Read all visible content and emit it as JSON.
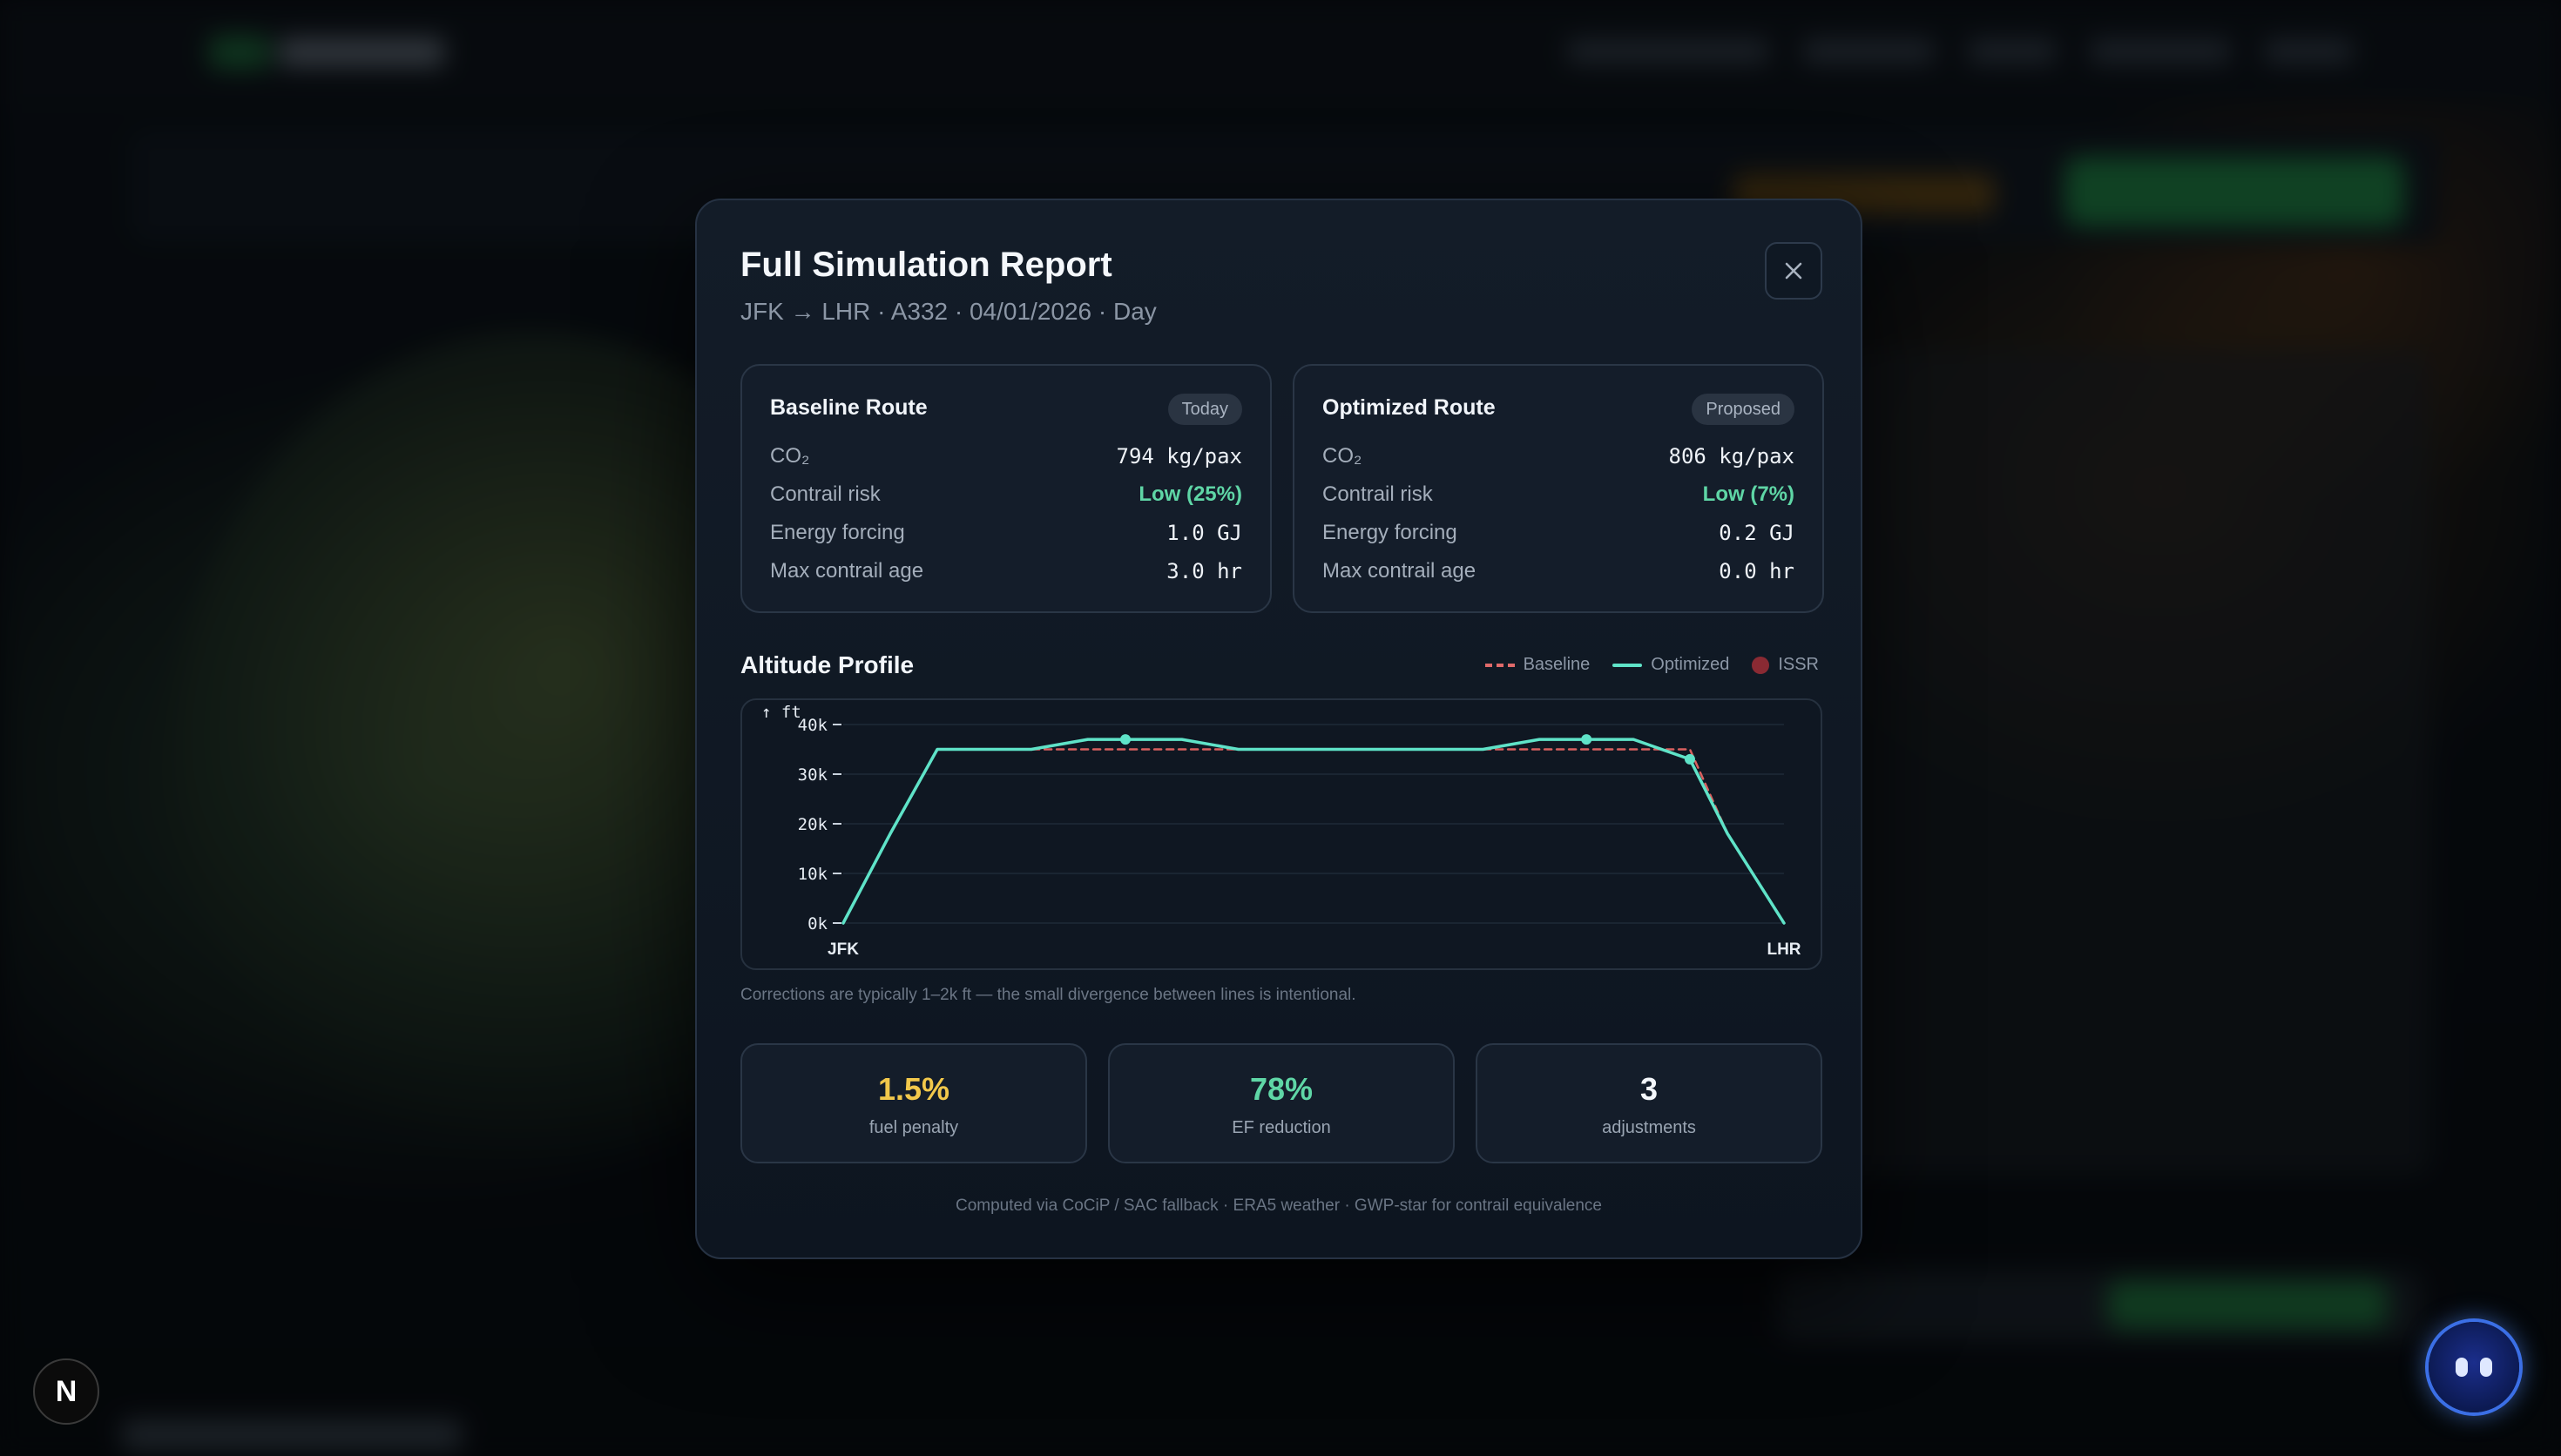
{
  "modal": {
    "title": "Full Simulation Report",
    "subtitle": "JFK → LHR · A332 · 04/01/2026 · Day",
    "close_icon": "close-icon"
  },
  "baseline": {
    "title": "Baseline Route",
    "badge": "Today",
    "rows": [
      {
        "label": "CO₂",
        "value": "794 kg/pax"
      },
      {
        "label": "Contrail risk",
        "value": "Low (25%)"
      },
      {
        "label": "Energy forcing",
        "value": "1.0 GJ"
      },
      {
        "label": "Max contrail age",
        "value": "3.0 hr"
      }
    ]
  },
  "optimized": {
    "title": "Optimized Route",
    "badge": "Proposed",
    "rows": [
      {
        "label": "CO₂",
        "value": "806 kg/pax"
      },
      {
        "label": "Contrail risk",
        "value": "Low (7%)"
      },
      {
        "label": "Energy forcing",
        "value": "0.2 GJ"
      },
      {
        "label": "Max contrail age",
        "value": "0.0 hr"
      }
    ]
  },
  "altitude": {
    "title": "Altitude Profile",
    "legend": {
      "baseline": "Baseline",
      "optimized": "Optimized",
      "issr": "ISSR"
    },
    "note": "Corrections are typically 1–2k ft — the small divergence between lines is intentional."
  },
  "chart_data": {
    "type": "line",
    "ylabel": "↑ ft",
    "ylim": [
      0,
      40000
    ],
    "yticks": [
      "0k",
      "10k",
      "20k",
      "30k",
      "40k"
    ],
    "x_endpoints": [
      "JFK",
      "LHR"
    ],
    "x": [
      0,
      0.05,
      0.1,
      0.2,
      0.26,
      0.3,
      0.36,
      0.42,
      0.5,
      0.68,
      0.74,
      0.79,
      0.84,
      0.9,
      0.94,
      1.0
    ],
    "series": [
      {
        "name": "Baseline",
        "style": "dashed",
        "color": "#d9605f",
        "values": [
          0,
          18000,
          35000,
          35000,
          35000,
          35000,
          35000,
          35000,
          35000,
          35000,
          35000,
          35000,
          35000,
          35000,
          18000,
          0
        ]
      },
      {
        "name": "Optimized",
        "style": "solid",
        "color": "#5fe3c8",
        "values": [
          0,
          18000,
          35000,
          35000,
          37000,
          37000,
          37000,
          35000,
          35000,
          35000,
          37000,
          37000,
          37000,
          33000,
          18000,
          0
        ]
      }
    ],
    "adjustment_points_x": [
      0.3,
      0.79,
      0.9
    ],
    "grid": true
  },
  "stats": [
    {
      "value": "1.5%",
      "label": "fuel penalty",
      "color": "#f2c84b"
    },
    {
      "value": "78%",
      "label": "EF reduction",
      "color": "#5fd6a6"
    },
    {
      "value": "3",
      "label": "adjustments",
      "color": "#f4f7fb"
    }
  ],
  "footer": "Computed via CoCiP / SAC fallback · ERA5 weather · GWP-star for contrail equivalence",
  "floating": {
    "n_badge": "N",
    "assistant_icon": "assistant-bot-icon"
  }
}
